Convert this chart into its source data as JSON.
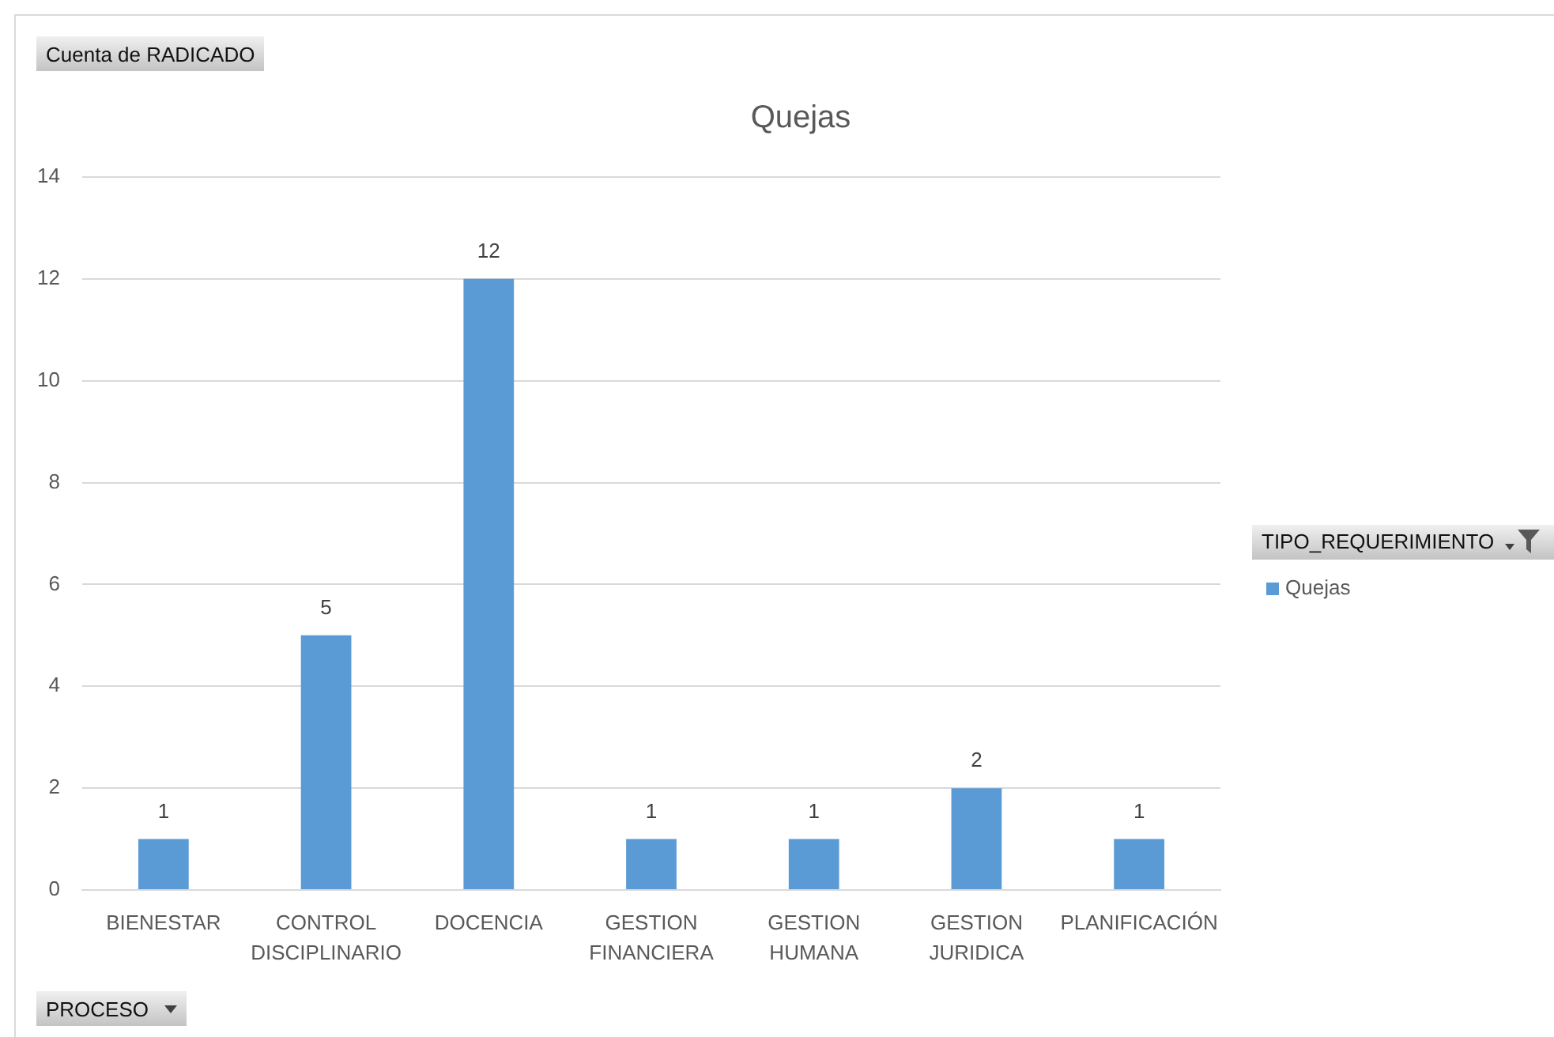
{
  "chart_data": {
    "type": "bar",
    "title": "Quejas",
    "xlabel": "PROCESO",
    "ylabel": "Cuenta de RADICADO",
    "legend_title": "TIPO_REQUERIMIENTO",
    "categories": [
      "BIENESTAR",
      "CONTROL DISCIPLINARIO",
      "DOCENCIA",
      "GESTION FINANCIERA",
      "GESTION HUMANA",
      "GESTION JURIDICA",
      "PLANIFICACIÓN"
    ],
    "series": [
      {
        "name": "Quejas",
        "color": "#5b9bd5",
        "values": [
          1,
          5,
          12,
          1,
          1,
          2,
          1
        ]
      }
    ],
    "ylim": [
      0,
      14
    ],
    "yticks": [
      0,
      2,
      4,
      6,
      8,
      10,
      12,
      14
    ],
    "grid": "y",
    "legend": "right",
    "data_labels": true
  }
}
